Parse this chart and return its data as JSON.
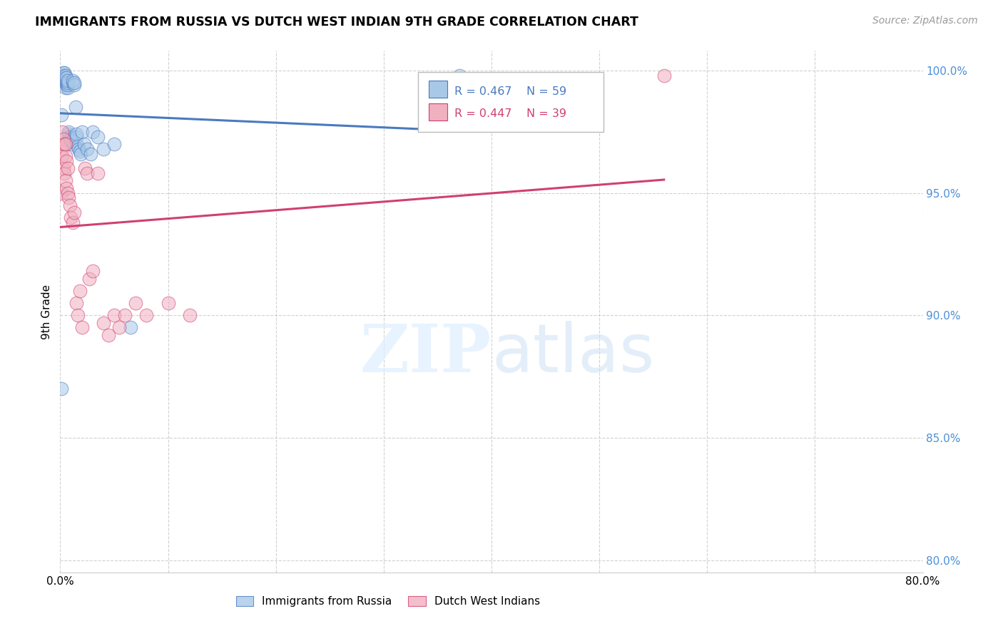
{
  "title": "IMMIGRANTS FROM RUSSIA VS DUTCH WEST INDIAN 9TH GRADE CORRELATION CHART",
  "source": "Source: ZipAtlas.com",
  "ylabel": "9th Grade",
  "xlim": [
    0.0,
    0.8
  ],
  "ylim": [
    0.795,
    1.008
  ],
  "xticks": [
    0.0,
    0.1,
    0.2,
    0.3,
    0.4,
    0.5,
    0.6,
    0.7,
    0.8
  ],
  "xticklabels": [
    "0.0%",
    "",
    "",
    "",
    "",
    "",
    "",
    "",
    "80.0%"
  ],
  "ytick_positions": [
    0.8,
    0.85,
    0.9,
    0.95,
    1.0
  ],
  "ytick_labels": [
    "80.0%",
    "85.0%",
    "90.0%",
    "95.0%",
    "100.0%"
  ],
  "legend_russia_R": "R = 0.467",
  "legend_russia_N": "N = 59",
  "legend_dutch_R": "R = 0.447",
  "legend_dutch_N": "N = 39",
  "color_russia": "#a8c8e8",
  "color_dutch": "#f0b0c0",
  "color_russia_line": "#4a7abf",
  "color_dutch_line": "#d04070",
  "russia_x": [
    0.001,
    0.001,
    0.002,
    0.002,
    0.002,
    0.003,
    0.003,
    0.003,
    0.003,
    0.003,
    0.004,
    0.004,
    0.004,
    0.004,
    0.004,
    0.005,
    0.005,
    0.005,
    0.005,
    0.005,
    0.005,
    0.006,
    0.006,
    0.006,
    0.006,
    0.007,
    0.007,
    0.007,
    0.007,
    0.008,
    0.008,
    0.008,
    0.009,
    0.009,
    0.01,
    0.01,
    0.011,
    0.011,
    0.012,
    0.012,
    0.013,
    0.013,
    0.014,
    0.015,
    0.015,
    0.016,
    0.017,
    0.018,
    0.019,
    0.02,
    0.022,
    0.025,
    0.028,
    0.03,
    0.035,
    0.04,
    0.05,
    0.065,
    0.37
  ],
  "russia_y": [
    0.87,
    0.982,
    0.997,
    0.997,
    0.998,
    0.997,
    0.997,
    0.998,
    0.998,
    0.999,
    0.997,
    0.997,
    0.998,
    0.998,
    0.999,
    0.993,
    0.995,
    0.996,
    0.997,
    0.997,
    0.998,
    0.994,
    0.995,
    0.996,
    0.997,
    0.993,
    0.994,
    0.995,
    0.996,
    0.973,
    0.974,
    0.975,
    0.972,
    0.973,
    0.971,
    0.972,
    0.97,
    0.971,
    0.995,
    0.996,
    0.994,
    0.995,
    0.985,
    0.973,
    0.974,
    0.969,
    0.968,
    0.967,
    0.966,
    0.975,
    0.97,
    0.968,
    0.966,
    0.975,
    0.973,
    0.968,
    0.97,
    0.895,
    0.998
  ],
  "dutch_x": [
    0.001,
    0.001,
    0.002,
    0.002,
    0.003,
    0.003,
    0.004,
    0.004,
    0.005,
    0.005,
    0.005,
    0.006,
    0.006,
    0.007,
    0.007,
    0.008,
    0.009,
    0.01,
    0.012,
    0.013,
    0.015,
    0.016,
    0.018,
    0.02,
    0.023,
    0.025,
    0.027,
    0.03,
    0.035,
    0.04,
    0.045,
    0.05,
    0.055,
    0.06,
    0.07,
    0.08,
    0.1,
    0.12,
    0.56
  ],
  "dutch_y": [
    0.95,
    0.968,
    0.965,
    0.975,
    0.96,
    0.972,
    0.958,
    0.97,
    0.955,
    0.965,
    0.97,
    0.952,
    0.963,
    0.95,
    0.96,
    0.948,
    0.945,
    0.94,
    0.938,
    0.942,
    0.905,
    0.9,
    0.91,
    0.895,
    0.96,
    0.958,
    0.915,
    0.918,
    0.958,
    0.897,
    0.892,
    0.9,
    0.895,
    0.9,
    0.905,
    0.9,
    0.905,
    0.9,
    0.998
  ]
}
